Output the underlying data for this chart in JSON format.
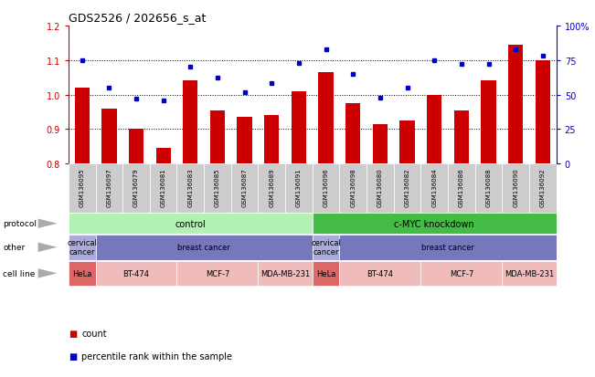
{
  "title": "GDS2526 / 202656_s_at",
  "samples": [
    "GSM136095",
    "GSM136097",
    "GSM136079",
    "GSM136081",
    "GSM136083",
    "GSM136085",
    "GSM136087",
    "GSM136089",
    "GSM136091",
    "GSM136096",
    "GSM136098",
    "GSM136080",
    "GSM136082",
    "GSM136084",
    "GSM136086",
    "GSM136088",
    "GSM136090",
    "GSM136092"
  ],
  "bar_values": [
    1.02,
    0.96,
    0.9,
    0.845,
    1.04,
    0.955,
    0.935,
    0.94,
    1.01,
    1.065,
    0.975,
    0.915,
    0.925,
    1.0,
    0.955,
    1.04,
    1.145,
    1.1
  ],
  "dot_values": [
    75,
    55,
    47,
    46,
    70,
    62,
    52,
    58,
    73,
    83,
    65,
    48,
    55,
    75,
    72,
    72,
    83,
    78
  ],
  "ylim_left": [
    0.8,
    1.2
  ],
  "ylim_right": [
    0,
    100
  ],
  "yticks_left": [
    0.8,
    0.9,
    1.0,
    1.1,
    1.2
  ],
  "yticks_right": [
    0,
    25,
    50,
    75,
    100
  ],
  "ytick_labels_right": [
    "0",
    "25",
    "50",
    "75",
    "100%"
  ],
  "bar_color": "#cc0000",
  "dot_color": "#0000cc",
  "grid_values": [
    0.9,
    1.0,
    1.1
  ],
  "protocol_row": {
    "label": "protocol",
    "groups": [
      {
        "text": "control",
        "start": 0,
        "end": 9,
        "color": "#b3f0b3"
      },
      {
        "text": "c-MYC knockdown",
        "start": 9,
        "end": 18,
        "color": "#44bb44"
      }
    ]
  },
  "other_row": {
    "label": "other",
    "groups": [
      {
        "text": "cervical\ncancer",
        "start": 0,
        "end": 1,
        "color": "#aaaadd"
      },
      {
        "text": "breast cancer",
        "start": 1,
        "end": 9,
        "color": "#7777bb"
      },
      {
        "text": "cervical\ncancer",
        "start": 9,
        "end": 10,
        "color": "#aaaadd"
      },
      {
        "text": "breast cancer",
        "start": 10,
        "end": 18,
        "color": "#7777bb"
      }
    ]
  },
  "cellline_row": {
    "label": "cell line",
    "groups": [
      {
        "text": "HeLa",
        "start": 0,
        "end": 1,
        "color": "#dd6666"
      },
      {
        "text": "BT-474",
        "start": 1,
        "end": 4,
        "color": "#f0bbbb"
      },
      {
        "text": "MCF-7",
        "start": 4,
        "end": 7,
        "color": "#f0bbbb"
      },
      {
        "text": "MDA-MB-231",
        "start": 7,
        "end": 9,
        "color": "#f0bbbb"
      },
      {
        "text": "HeLa",
        "start": 9,
        "end": 10,
        "color": "#dd6666"
      },
      {
        "text": "BT-474",
        "start": 10,
        "end": 13,
        "color": "#f0bbbb"
      },
      {
        "text": "MCF-7",
        "start": 13,
        "end": 16,
        "color": "#f0bbbb"
      },
      {
        "text": "MDA-MB-231",
        "start": 16,
        "end": 18,
        "color": "#f0bbbb"
      }
    ]
  },
  "bg_color": "#ffffff",
  "tick_area_color": "#cccccc",
  "legend_items": [
    {
      "color": "#cc0000",
      "label": "count"
    },
    {
      "color": "#0000cc",
      "label": "percentile rank within the sample"
    }
  ]
}
